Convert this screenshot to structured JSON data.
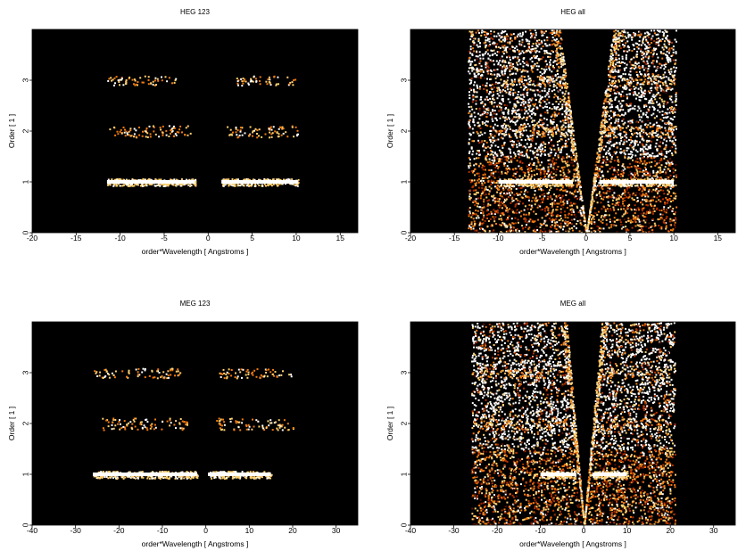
{
  "chart_data": [
    {
      "type": "heatmap",
      "title": "HEG 123",
      "xlabel": "order*Wavelength [ Angstroms ]",
      "ylabel": "Order [ 1 ]",
      "xlim": [
        -20,
        17
      ],
      "ylim": [
        0,
        4
      ],
      "xticks": [
        -20,
        -15,
        -10,
        -5,
        0,
        5,
        10,
        15
      ],
      "yticks": [
        0,
        1,
        2,
        3
      ],
      "colormap": [
        "#000000",
        "#5a0e00",
        "#b53200",
        "#f07a10",
        "#ffd070",
        "#ffffff"
      ],
      "bands": [
        {
          "order": 1,
          "x_range": [
            -11.5,
            -1.5
          ],
          "intensity": "high"
        },
        {
          "order": 1,
          "x_range": [
            1.5,
            10.2
          ],
          "intensity": "high"
        },
        {
          "order": 2,
          "x_range": [
            -11.5,
            -2.0
          ],
          "intensity": "medium"
        },
        {
          "order": 2,
          "x_range": [
            2.0,
            10.2
          ],
          "intensity": "medium"
        },
        {
          "order": 3,
          "x_range": [
            -11.5,
            -3.5
          ],
          "intensity": "low"
        },
        {
          "order": 3,
          "x_range": [
            3.0,
            10.0
          ],
          "intensity": "low"
        }
      ],
      "background": "none"
    },
    {
      "type": "heatmap",
      "title": "HEG all",
      "xlabel": "order*Wavelength [ Angstroms ]",
      "ylabel": "Order [ 1 ]",
      "xlim": [
        -20,
        17
      ],
      "ylim": [
        0,
        4
      ],
      "xticks": [
        -20,
        -15,
        -10,
        -5,
        0,
        5,
        10,
        15
      ],
      "yticks": [
        0,
        1,
        2,
        3
      ],
      "colormap": [
        "#000000",
        "#5a0e00",
        "#b53200",
        "#f07a10",
        "#ffd070",
        "#ffffff"
      ],
      "bands": [
        {
          "order": 1,
          "x_range": [
            -10,
            -1.5
          ],
          "intensity": "high"
        },
        {
          "order": 1,
          "x_range": [
            1.5,
            10
          ],
          "intensity": "high"
        },
        {
          "order": 2,
          "x_range": [
            -10,
            -2
          ],
          "intensity": "medium"
        },
        {
          "order": 2,
          "x_range": [
            2,
            10
          ],
          "intensity": "medium"
        },
        {
          "order": 3,
          "x_range": [
            -10,
            -3
          ],
          "intensity": "low"
        },
        {
          "order": 3,
          "x_range": [
            3,
            10
          ],
          "intensity": "low"
        }
      ],
      "background": "full",
      "wedge": {
        "left_edge_at_top": -3.0,
        "right_edge_at_top": 3.0
      },
      "x_extent": [
        -13.5,
        10.2
      ]
    },
    {
      "type": "heatmap",
      "title": "MEG 123",
      "xlabel": "order*Wavelength [ Angstroms ]",
      "ylabel": "Order [ 1 ]",
      "xlim": [
        -40,
        35
      ],
      "ylim": [
        0,
        4
      ],
      "xticks": [
        -40,
        -30,
        -20,
        -10,
        0,
        10,
        20,
        30
      ],
      "yticks": [
        0,
        1,
        2,
        3
      ],
      "colormap": [
        "#000000",
        "#5a0e00",
        "#b53200",
        "#f07a10",
        "#ffd070",
        "#ffffff"
      ],
      "bands": [
        {
          "order": 1,
          "x_range": [
            -26,
            -2
          ],
          "intensity": "high"
        },
        {
          "order": 1,
          "x_range": [
            0.5,
            15
          ],
          "intensity": "high"
        },
        {
          "order": 2,
          "x_range": [
            -24,
            -4
          ],
          "intensity": "medium"
        },
        {
          "order": 2,
          "x_range": [
            2,
            20
          ],
          "intensity": "medium"
        },
        {
          "order": 3,
          "x_range": [
            -26,
            -6
          ],
          "intensity": "low"
        },
        {
          "order": 3,
          "x_range": [
            3,
            20
          ],
          "intensity": "low"
        }
      ],
      "background": "none"
    },
    {
      "type": "heatmap",
      "title": "MEG all",
      "xlabel": "order*Wavelength [ Angstroms ]",
      "ylabel": "Order [ 1 ]",
      "xlim": [
        -40,
        35
      ],
      "ylim": [
        0,
        4
      ],
      "xticks": [
        -40,
        -30,
        -20,
        -10,
        0,
        10,
        20,
        30
      ],
      "yticks": [
        0,
        1,
        2,
        3
      ],
      "colormap": [
        "#000000",
        "#5a0e00",
        "#b53200",
        "#f07a10",
        "#ffd070",
        "#ffffff"
      ],
      "bands": [
        {
          "order": 1,
          "x_range": [
            -10,
            -2
          ],
          "intensity": "high"
        },
        {
          "order": 1,
          "x_range": [
            2,
            10
          ],
          "intensity": "high"
        },
        {
          "order": 2,
          "x_range": [
            -25,
            -3
          ],
          "intensity": "medium"
        },
        {
          "order": 2,
          "x_range": [
            3,
            20
          ],
          "intensity": "medium"
        },
        {
          "order": 3,
          "x_range": [
            -26,
            -5
          ],
          "intensity": "low"
        },
        {
          "order": 3,
          "x_range": [
            4,
            20
          ],
          "intensity": "low"
        }
      ],
      "background": "full",
      "wedge": {
        "left_edge_at_top": -4.0,
        "right_edge_at_top": 4.0
      },
      "x_extent": [
        -26,
        21
      ]
    }
  ]
}
